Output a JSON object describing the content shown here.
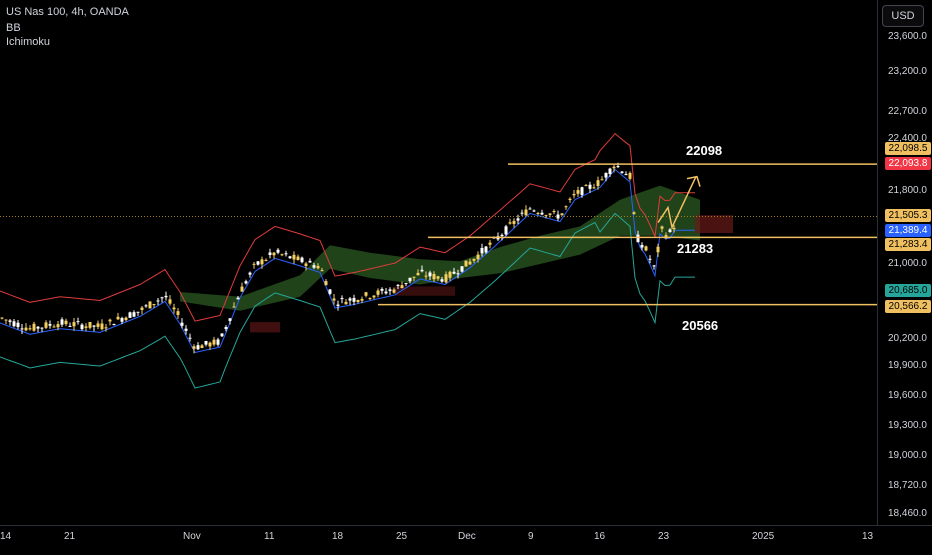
{
  "header": {
    "title": "US Nas 100, 4h, OANDA",
    "indicator_1": "BB",
    "indicator_2": "Ichimoku"
  },
  "currency_button": "USD",
  "colors": {
    "bull_candle": "#f5d060",
    "bear_candle": "#ffffff",
    "bb_upper": "#e03c3c",
    "bb_lower": "#26a69a",
    "bb_basis": "#2962ff",
    "level_line": "#f0c060",
    "cloud_green": "#3c7a2e",
    "cloud_red": "#6b1a1a"
  },
  "chart_data": {
    "type": "candlestick",
    "y_ticks": [
      "23,600.0",
      "23,200.0",
      "22,700.0",
      "22,400.0",
      "22,100.0",
      "21,800.0",
      "21,500.0",
      "21,000.0",
      "20,700.0",
      "20,200.0",
      "19,900.0",
      "19,600.0",
      "19,300.0",
      "19,000.0",
      "18,720.0",
      "18,460.0"
    ],
    "x_ticks": [
      "14",
      "21",
      "Nov",
      "11",
      "18",
      "25",
      "Dec",
      "9",
      "16",
      "23",
      "2025",
      "13"
    ],
    "ylim": [
      18400,
      23850
    ],
    "price_labels": [
      {
        "text": "22,098.5",
        "value": 22098.5,
        "bg": "#f0c060"
      },
      {
        "text": "22,093.8",
        "value": 22093.8,
        "bg": "#f23645"
      },
      {
        "text": "21,505.3",
        "value": 21505.3,
        "bg": "#f0c060"
      },
      {
        "text": "21,389.4",
        "value": 21389.4,
        "bg": "#2962ff"
      },
      {
        "text": "21,283.4",
        "value": 21283.4,
        "bg": "#f0c060"
      },
      {
        "text": "20,685.0",
        "value": 20685.0,
        "bg": "#26a69a"
      },
      {
        "text": "20,566.2",
        "value": 20566.2,
        "bg": "#f0c060"
      }
    ],
    "levels": [
      22098.5,
      21283.4,
      20566.2
    ],
    "annotations": [
      "22098",
      "21283",
      "20566"
    ],
    "current_price": 21505.3
  }
}
